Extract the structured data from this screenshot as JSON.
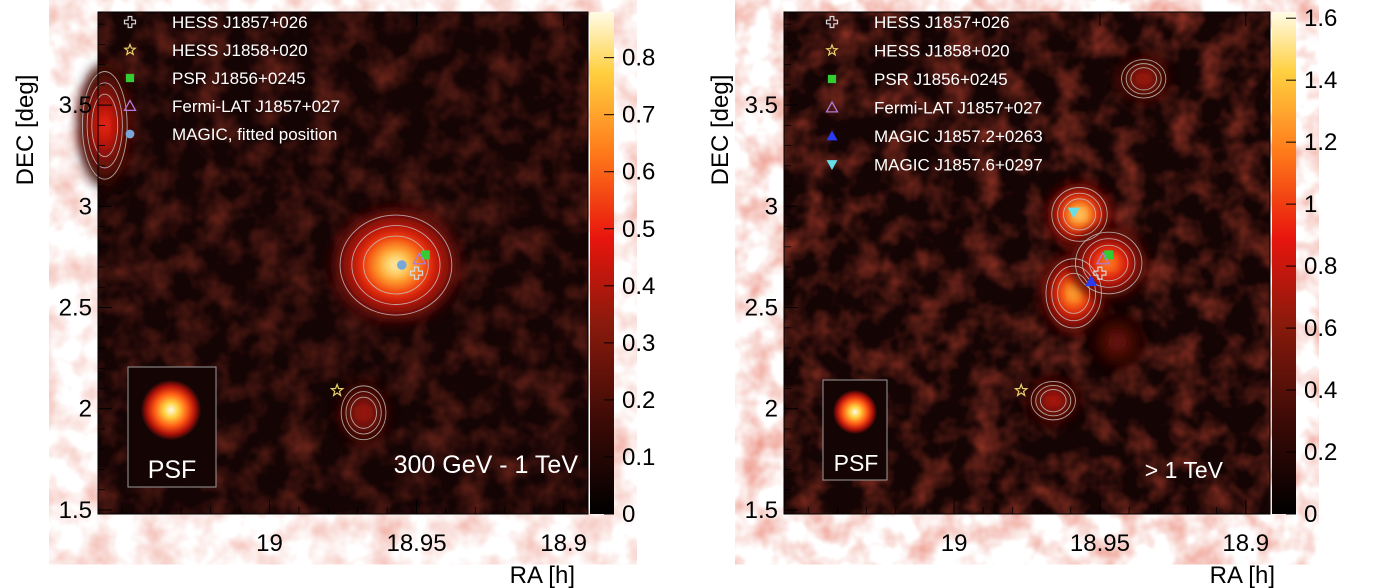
{
  "chart_data": [
    {
      "type": "heatmap",
      "energy_label": "300 GeV - 1 TeV",
      "psf_label": "PSF",
      "xlabel": "RA [h]",
      "ylabel": "DEC [deg]",
      "x_ticks": [
        "19",
        "18.95",
        "18.9"
      ],
      "y_ticks": [
        "1.5",
        "2",
        "2.5",
        "3",
        "3.5"
      ],
      "colorbar_ticks": [
        "0",
        "0.1",
        "0.2",
        "0.3",
        "0.4",
        "0.5",
        "0.6",
        "0.7",
        "0.8"
      ],
      "colorbar_range": [
        0,
        0.88
      ],
      "xlim": [
        19.0583,
        18.8917
      ],
      "ylim": [
        1.48,
        3.96
      ],
      "legend": [
        {
          "label": "HESS J1857+026",
          "marker": "cross",
          "color": "#d9d9d9"
        },
        {
          "label": "HESS J1858+020",
          "marker": "star",
          "color": "#e6d36a"
        },
        {
          "label": "PSR J1856+0245",
          "marker": "square",
          "color": "#33cc33"
        },
        {
          "label": "Fermi-LAT J1857+027",
          "marker": "triangle-open",
          "color": "#b07ad8"
        },
        {
          "label": "MAGIC, fitted position",
          "marker": "circle",
          "color": "#7aa7d9"
        }
      ],
      "sources": [
        {
          "marker": "cross",
          "ra": 18.95,
          "dec": 2.67,
          "color": "#d9d9d9"
        },
        {
          "marker": "star",
          "ra": 18.977,
          "dec": 2.09,
          "color": "#e6d36a"
        },
        {
          "marker": "square",
          "ra": 18.947,
          "dec": 2.76,
          "color": "#33cc33"
        },
        {
          "marker": "triangle-open",
          "ra": 18.949,
          "dec": 2.74,
          "color": "#b07ad8"
        },
        {
          "marker": "circle",
          "ra": 18.955,
          "dec": 2.71,
          "color": "#7aa7d9"
        }
      ],
      "blobs": [
        {
          "ra": 18.957,
          "dec": 2.71,
          "value": 0.88,
          "sx": 0.01,
          "sy": 0.13
        },
        {
          "ra": 18.968,
          "dec": 1.98,
          "value": 0.42,
          "sx": 0.004,
          "sy": 0.07
        },
        {
          "ra": 19.056,
          "dec": 3.4,
          "value": 0.55,
          "sx": 0.004,
          "sy": 0.14
        }
      ]
    },
    {
      "type": "heatmap",
      "energy_label": "> 1 TeV",
      "psf_label": "PSF",
      "xlabel": "RA [h]",
      "ylabel": "DEC [deg]",
      "x_ticks": [
        "19",
        "18.95",
        "18.9"
      ],
      "y_ticks": [
        "1.5",
        "2",
        "2.5",
        "3",
        "3.5"
      ],
      "colorbar_ticks": [
        "0",
        "0.2",
        "0.4",
        "0.6",
        "0.8",
        "1",
        "1.2",
        "1.4",
        "1.6"
      ],
      "colorbar_range": [
        0,
        1.62
      ],
      "xlim": [
        19.0583,
        18.8917
      ],
      "ylim": [
        1.48,
        3.96
      ],
      "legend": [
        {
          "label": "HESS J1857+026",
          "marker": "cross",
          "color": "#d9d9d9"
        },
        {
          "label": "HESS J1858+020",
          "marker": "star",
          "color": "#e6d36a"
        },
        {
          "label": "PSR J1856+0245",
          "marker": "square",
          "color": "#33cc33"
        },
        {
          "label": "Fermi-LAT J1857+027",
          "marker": "triangle-open",
          "color": "#b07ad8"
        },
        {
          "label": "MAGIC J1857.2+0263",
          "marker": "triangle",
          "color": "#2a3cf0"
        },
        {
          "label": "MAGIC J1857.6+0297",
          "marker": "triangle-down",
          "color": "#66e0e8"
        }
      ],
      "sources": [
        {
          "marker": "cross",
          "ra": 18.95,
          "dec": 2.67,
          "color": "#d9d9d9"
        },
        {
          "marker": "star",
          "ra": 18.977,
          "dec": 2.09,
          "color": "#e6d36a"
        },
        {
          "marker": "square",
          "ra": 18.947,
          "dec": 2.76,
          "color": "#33cc33"
        },
        {
          "marker": "triangle-open",
          "ra": 18.949,
          "dec": 2.74,
          "color": "#b07ad8"
        },
        {
          "marker": "triangle",
          "ra": 18.953,
          "dec": 2.63,
          "color": "#2a3cf0"
        },
        {
          "marker": "triangle-down",
          "ra": 18.959,
          "dec": 2.97,
          "color": "#66e0e8"
        }
      ],
      "blobs": [
        {
          "ra": 18.957,
          "dec": 2.96,
          "value": 1.62,
          "sx": 0.005,
          "sy": 0.07
        },
        {
          "ra": 18.959,
          "dec": 2.57,
          "value": 1.45,
          "sx": 0.005,
          "sy": 0.09
        },
        {
          "ra": 18.947,
          "dec": 2.72,
          "value": 1.3,
          "sx": 0.006,
          "sy": 0.08
        },
        {
          "ra": 18.966,
          "dec": 2.04,
          "value": 0.85,
          "sx": 0.004,
          "sy": 0.05
        },
        {
          "ra": 18.935,
          "dec": 3.63,
          "value": 0.8,
          "sx": 0.004,
          "sy": 0.05
        },
        {
          "ra": 18.944,
          "dec": 2.33,
          "value": 0.55,
          "sx": 0.004,
          "sy": 0.06
        }
      ]
    }
  ]
}
